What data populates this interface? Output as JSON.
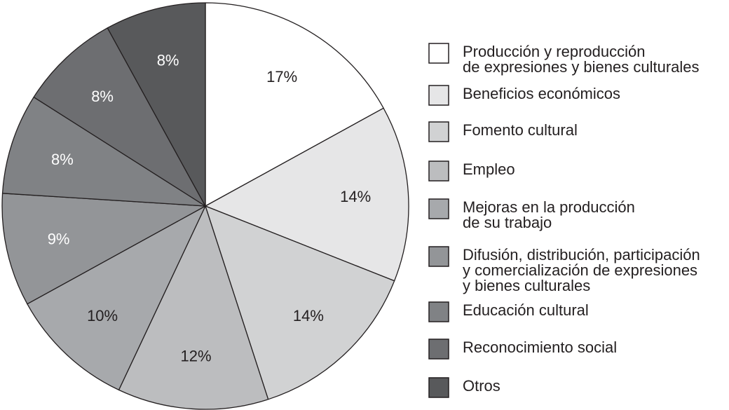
{
  "chart_data": {
    "type": "pie",
    "title": "",
    "legend_position": "right",
    "start_angle": "12 o'clock",
    "direction": "clockwise",
    "slices": [
      {
        "label": "Producción y reproducción de expresiones y bienes culturales",
        "legend_lines": [
          "Producción y reproducción",
          "de expresiones y bienes culturales"
        ],
        "value": 17,
        "value_label": "17%",
        "color": "#ffffff",
        "label_color": "#231f20"
      },
      {
        "label": "Beneficios económicos",
        "legend_lines": [
          "Beneficios económicos"
        ],
        "value": 14,
        "value_label": "14%",
        "color": "#e6e6e7",
        "label_color": "#231f20"
      },
      {
        "label": "Fomento cultural",
        "legend_lines": [
          "Fomento cultural"
        ],
        "value": 14,
        "value_label": "14%",
        "color": "#d1d2d3",
        "label_color": "#231f20"
      },
      {
        "label": "Empleo",
        "legend_lines": [
          "Empleo"
        ],
        "value": 12,
        "value_label": "12%",
        "color": "#bcbdbf",
        "label_color": "#231f20"
      },
      {
        "label": "Mejoras en la producción de su trabajo",
        "legend_lines": [
          "Mejoras en la producción",
          "de su trabajo"
        ],
        "value": 10,
        "value_label": "10%",
        "color": "#a7a9ac",
        "label_color": "#231f20"
      },
      {
        "label": "Difusión, distribución, participación y comercialización de expresiones y bienes culturales",
        "legend_lines": [
          "Difusión, distribución, participación",
          "y comercialización de expresiones",
          "y bienes culturales"
        ],
        "value": 9,
        "value_label": "9%",
        "color": "#939598",
        "label_color": "#ffffff"
      },
      {
        "label": "Educación cultural",
        "legend_lines": [
          "Educación cultural"
        ],
        "value": 8,
        "value_label": "8%",
        "color": "#808285",
        "label_color": "#ffffff"
      },
      {
        "label": "Reconocimiento social",
        "legend_lines": [
          "Reconocimiento social"
        ],
        "value": 8,
        "value_label": "8%",
        "color": "#6d6e71",
        "label_color": "#ffffff"
      },
      {
        "label": "Otros",
        "legend_lines": [
          "Otros"
        ],
        "value": 8,
        "value_label": "8%",
        "color": "#58595b",
        "label_color": "#ffffff"
      }
    ]
  }
}
